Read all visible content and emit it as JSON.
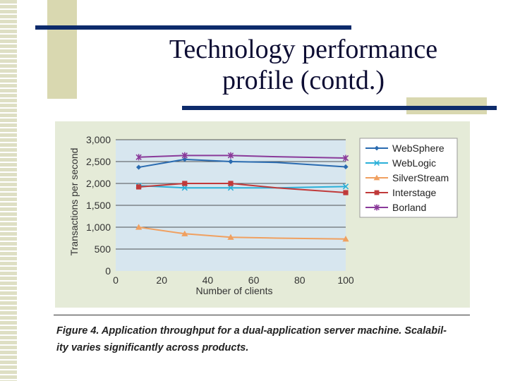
{
  "slide": {
    "title_line1": "Technology performance",
    "title_line2": "profile (contd.)",
    "caption_line1": "Figure 4. Application throughput for a dual-application server machine. Scalabil-",
    "caption_line2": "ity varies significantly across products."
  },
  "chart_data": {
    "type": "line",
    "xlabel": "Number of clients",
    "ylabel": "Transactions per second",
    "xlim": [
      0,
      100
    ],
    "ylim": [
      0,
      3000
    ],
    "x_ticks": [
      0,
      20,
      40,
      60,
      80,
      100
    ],
    "y_ticks": [
      0,
      500,
      1000,
      1500,
      2000,
      2500,
      3000
    ],
    "y_tick_labels": [
      "0",
      "500",
      "1,000",
      "1,500",
      "2,000",
      "2,500",
      "3,000"
    ],
    "grid": "horizontal",
    "legend_position": "top-right",
    "series": [
      {
        "name": "WebSphere",
        "color": "#2a6bb0",
        "marker": "diamond",
        "line_x": [
          10,
          30,
          50,
          70,
          100
        ],
        "line_y": [
          2370,
          2550,
          2500,
          2480,
          2380
        ],
        "marker_x": [
          10,
          30,
          50,
          100
        ],
        "marker_y": [
          2370,
          2550,
          2500,
          2380
        ]
      },
      {
        "name": "WebLogic",
        "color": "#2ab0d8",
        "marker": "x",
        "line_x": [
          10,
          30,
          50,
          70,
          100
        ],
        "line_y": [
          1950,
          1900,
          1900,
          1900,
          1930
        ],
        "marker_x": [
          10,
          30,
          50,
          100
        ],
        "marker_y": [
          1950,
          1900,
          1900,
          1930
        ]
      },
      {
        "name": "SilverStream",
        "color": "#f0a060",
        "marker": "triangle",
        "line_x": [
          10,
          30,
          50,
          70,
          100
        ],
        "line_y": [
          1000,
          850,
          770,
          750,
          730
        ],
        "marker_x": [
          10,
          30,
          50,
          100
        ],
        "marker_y": [
          1000,
          850,
          770,
          730
        ]
      },
      {
        "name": "Interstage",
        "color": "#c03a3a",
        "marker": "square",
        "line_x": [
          10,
          30,
          50,
          70,
          100
        ],
        "line_y": [
          1920,
          2000,
          2000,
          1900,
          1790
        ],
        "marker_x": [
          10,
          30,
          50,
          100
        ],
        "marker_y": [
          1920,
          2000,
          2000,
          1790
        ]
      },
      {
        "name": "Borland",
        "color": "#8a3a9a",
        "marker": "star",
        "line_x": [
          10,
          30,
          50,
          70,
          100
        ],
        "line_y": [
          2600,
          2640,
          2640,
          2610,
          2580
        ],
        "marker_x": [
          10,
          30,
          50,
          100
        ],
        "marker_y": [
          2600,
          2640,
          2640,
          2580
        ]
      }
    ]
  }
}
